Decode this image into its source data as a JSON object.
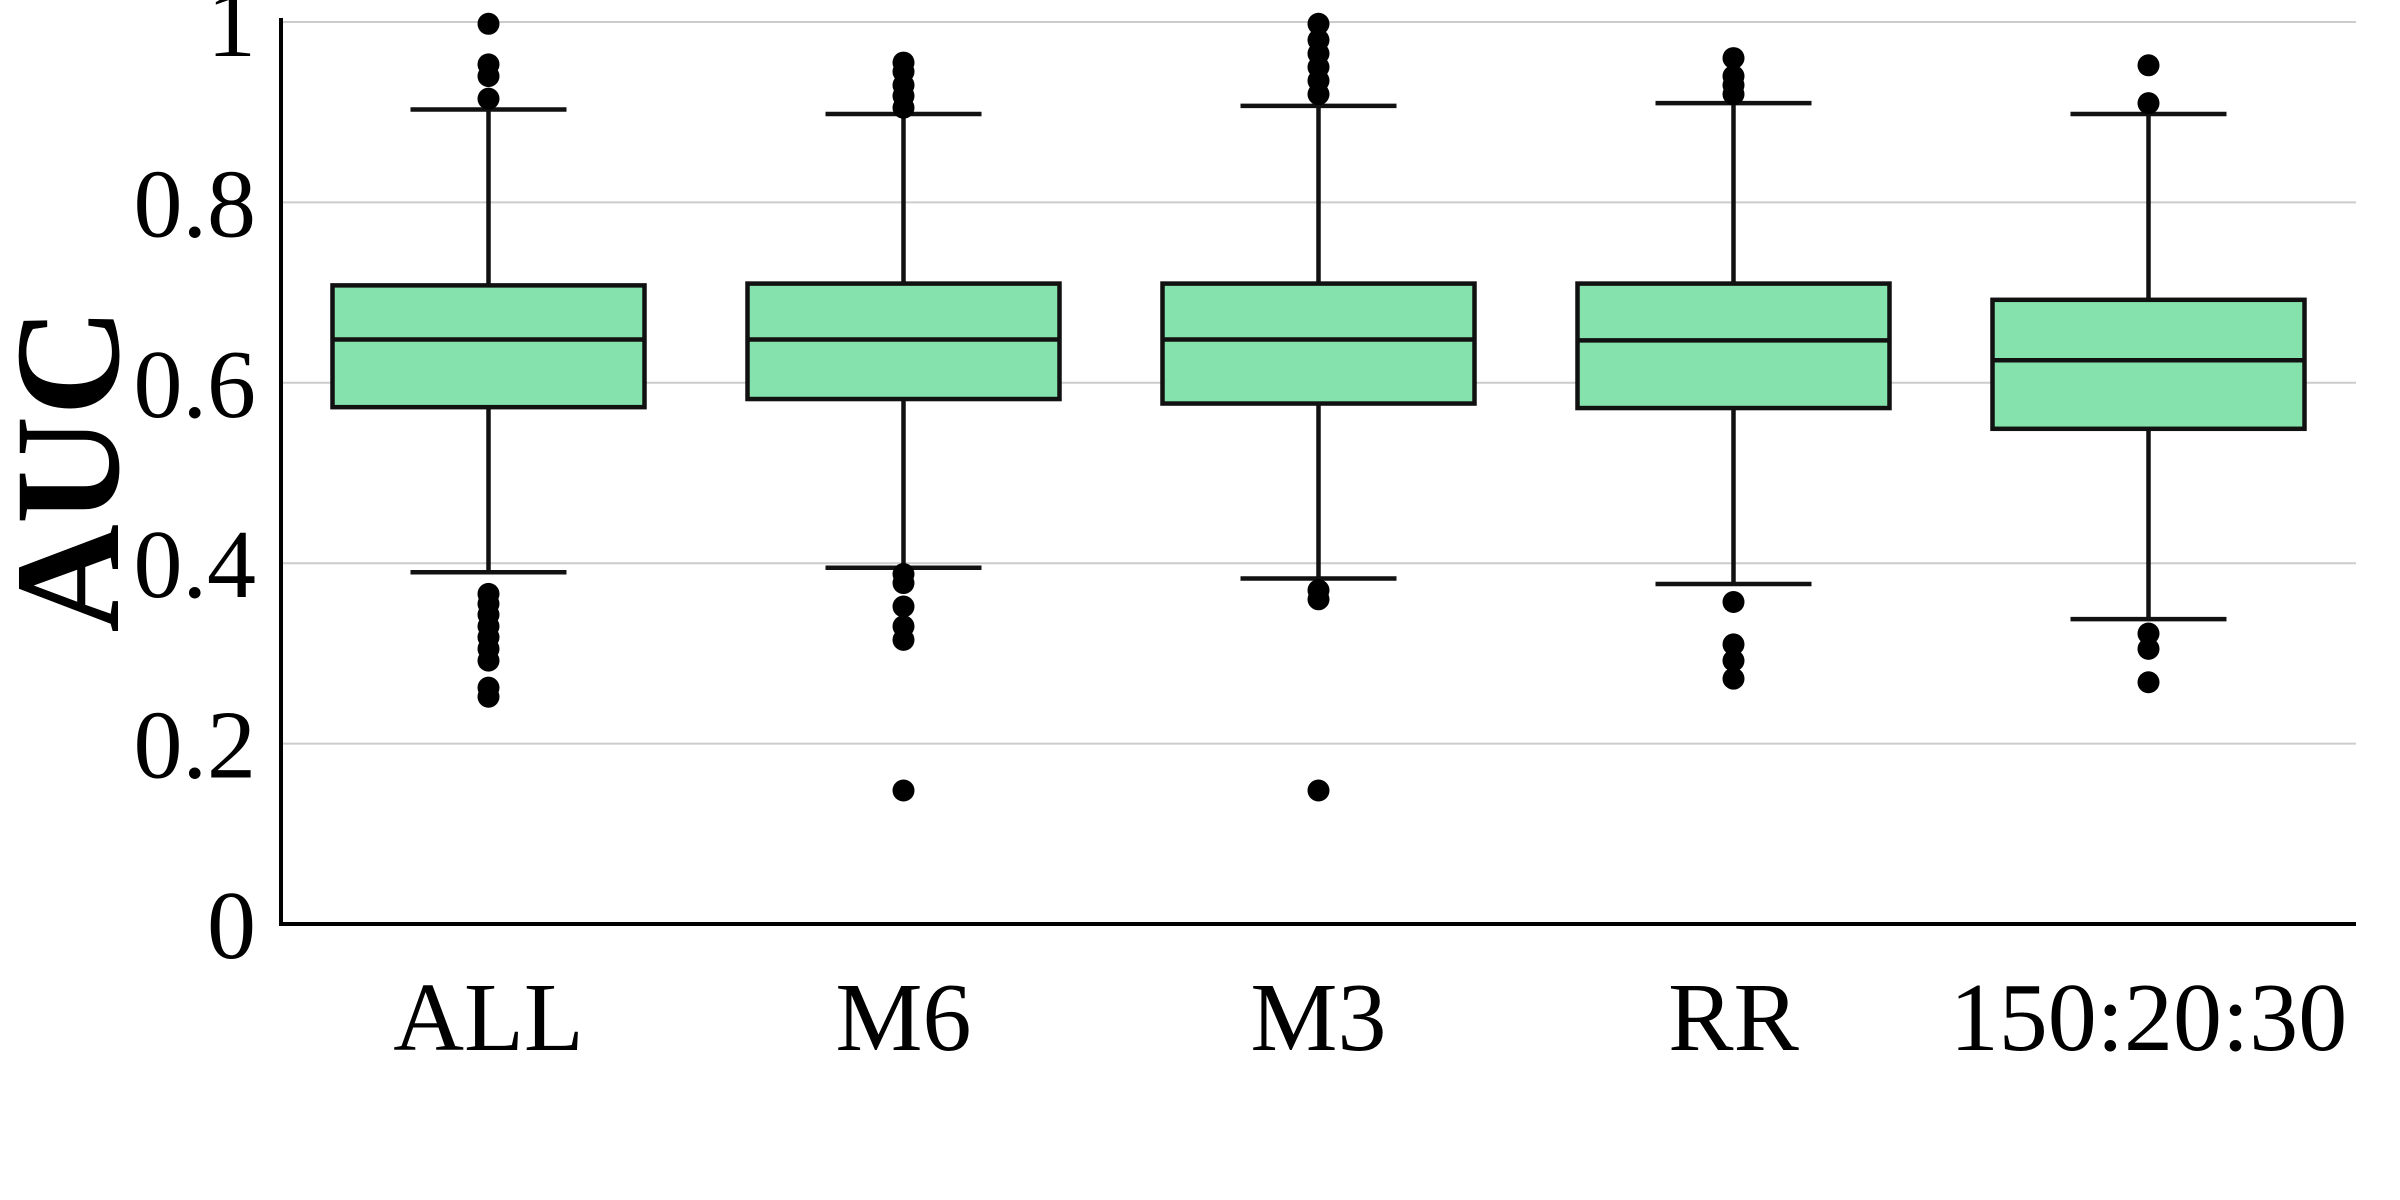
{
  "chart_data": {
    "type": "box",
    "categories": [
      "ALL",
      "M6",
      "M3",
      "RR",
      "150:20:30"
    ],
    "ylabel": "AUC",
    "xlabel": "",
    "ylim": [
      0,
      1
    ],
    "yticks": [
      0,
      0.2,
      0.4,
      0.6,
      0.8,
      1
    ],
    "ytick_labels": [
      "0",
      "0.2",
      "0.4",
      "0.6",
      "0.8",
      "1"
    ],
    "grid": "horizontal",
    "box_color": "#85e2ac",
    "edge_color": "#111111",
    "boxes": [
      {
        "category": "ALL",
        "whisker_low": 0.39,
        "q1": 0.573,
        "median": 0.648,
        "q3": 0.708,
        "whisker_high": 0.903,
        "outliers": [
          0.252,
          0.262,
          0.292,
          0.305,
          0.318,
          0.33,
          0.343,
          0.355,
          0.366,
          0.915,
          0.94,
          0.953,
          0.998
        ]
      },
      {
        "category": "M6",
        "whisker_low": 0.395,
        "q1": 0.582,
        "median": 0.648,
        "q3": 0.71,
        "whisker_high": 0.898,
        "outliers": [
          0.148,
          0.315,
          0.33,
          0.352,
          0.378,
          0.388,
          0.905,
          0.918,
          0.93,
          0.945,
          0.955
        ]
      },
      {
        "category": "M3",
        "whisker_low": 0.383,
        "q1": 0.577,
        "median": 0.648,
        "q3": 0.71,
        "whisker_high": 0.907,
        "outliers": [
          0.148,
          0.36,
          0.37,
          0.92,
          0.935,
          0.95,
          0.965,
          0.98,
          0.998
        ]
      },
      {
        "category": "RR",
        "whisker_low": 0.377,
        "q1": 0.572,
        "median": 0.647,
        "q3": 0.71,
        "whisker_high": 0.91,
        "outliers": [
          0.272,
          0.292,
          0.31,
          0.357,
          0.92,
          0.93,
          0.94,
          0.96
        ]
      },
      {
        "category": "150:20:30",
        "whisker_low": 0.338,
        "q1": 0.549,
        "median": 0.625,
        "q3": 0.692,
        "whisker_high": 0.898,
        "outliers": [
          0.268,
          0.305,
          0.322,
          0.91,
          0.952
        ]
      }
    ]
  }
}
